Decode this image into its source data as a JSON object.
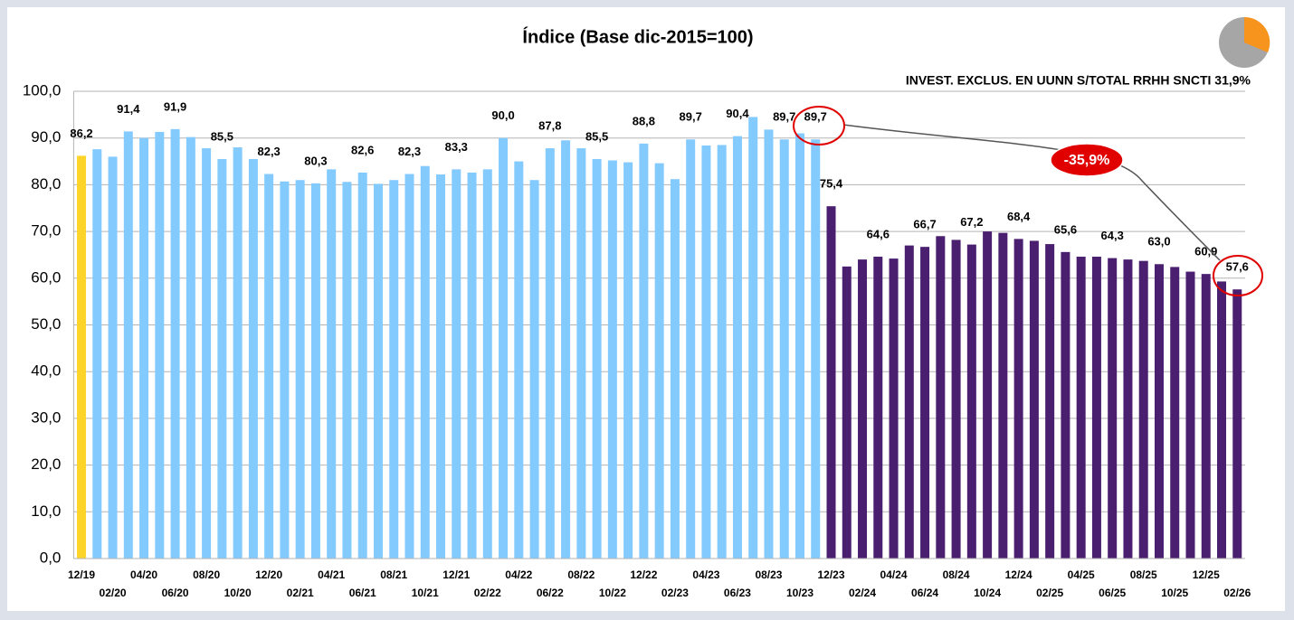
{
  "chart_data": {
    "type": "bar",
    "title": "Índice (Base dic-2015=100)",
    "subtitle": "INVEST. EXCLUS. EN UUNN S/TOTAL RRHH SNCTI  31,9%",
    "annotation": "-35,9%",
    "categories": [
      "12/19",
      null,
      "02/20",
      null,
      "04/20",
      null,
      "06/20",
      null,
      "08/20",
      null,
      "10/20",
      null,
      "12/20",
      null,
      "02/21",
      null,
      "04/21",
      null,
      "06/21",
      null,
      "08/21",
      null,
      "10/21",
      null,
      "12/21",
      null,
      "02/22",
      null,
      "04/22",
      null,
      "06/22",
      null,
      "08/22",
      null,
      "10/22",
      null,
      "12/22",
      null,
      "02/23",
      null,
      "04/23",
      null,
      "06/23",
      null,
      "08/23",
      null,
      "10/23",
      null,
      "12/23",
      null,
      "02/24",
      null,
      "04/24",
      null,
      "06/24",
      null,
      "08/24",
      null,
      "10/24",
      null,
      "12/24",
      null,
      "02/25",
      null,
      "04/25",
      null,
      "06/25",
      null,
      "08/25",
      null,
      "10/25",
      null,
      "12/25",
      null,
      "02/26"
    ],
    "values": [
      86.2,
      87.6,
      86.0,
      91.4,
      90.0,
      91.3,
      91.9,
      90.2,
      87.8,
      85.5,
      88.0,
      85.5,
      82.3,
      80.7,
      81.0,
      80.3,
      83.3,
      80.6,
      82.6,
      80.2,
      81.0,
      82.3,
      84.0,
      82.2,
      83.3,
      82.6,
      83.3,
      90.0,
      85.0,
      81.0,
      87.8,
      89.5,
      87.8,
      85.5,
      85.2,
      84.8,
      88.8,
      84.6,
      81.2,
      89.7,
      88.4,
      88.5,
      90.4,
      94.5,
      91.8,
      89.7,
      91.0,
      89.7,
      75.4,
      62.5,
      64.0,
      64.6,
      64.2,
      67.0,
      66.7,
      69.0,
      68.2,
      67.2,
      70.0,
      69.7,
      68.4,
      68.0,
      67.3,
      65.6,
      64.6,
      64.6,
      64.3,
      64.0,
      63.7,
      63.0,
      62.4,
      61.4,
      60.9,
      59.3,
      57.6
    ],
    "value_labels": [
      "86,2",
      null,
      null,
      "91,4",
      null,
      null,
      "91,9",
      null,
      null,
      "85,5",
      null,
      null,
      "82,3",
      null,
      null,
      "80,3",
      null,
      null,
      "82,6",
      null,
      null,
      "82,3",
      null,
      null,
      "83,3",
      null,
      null,
      "90,0",
      null,
      null,
      "87,8",
      null,
      null,
      "85,5",
      null,
      null,
      "88,8",
      null,
      null,
      "89,7",
      null,
      null,
      "90,4",
      null,
      null,
      "89,7",
      null,
      "89,7",
      "75,4",
      null,
      null,
      "64,6",
      null,
      null,
      "66,7",
      null,
      null,
      "67,2",
      null,
      null,
      "68,4",
      null,
      null,
      "65,6",
      null,
      null,
      "64,3",
      null,
      null,
      "63,0",
      null,
      null,
      "60,9",
      null,
      "57,6"
    ],
    "colors": [
      "#ffd42a",
      "#83caff",
      "#83caff",
      "#83caff",
      "#83caff",
      "#83caff",
      "#83caff",
      "#83caff",
      "#83caff",
      "#83caff",
      "#83caff",
      "#83caff",
      "#83caff",
      "#83caff",
      "#83caff",
      "#83caff",
      "#83caff",
      "#83caff",
      "#83caff",
      "#83caff",
      "#83caff",
      "#83caff",
      "#83caff",
      "#83caff",
      "#83caff",
      "#83caff",
      "#83caff",
      "#83caff",
      "#83caff",
      "#83caff",
      "#83caff",
      "#83caff",
      "#83caff",
      "#83caff",
      "#83caff",
      "#83caff",
      "#83caff",
      "#83caff",
      "#83caff",
      "#83caff",
      "#83caff",
      "#83caff",
      "#83caff",
      "#83caff",
      "#83caff",
      "#83caff",
      "#83caff",
      "#83caff",
      "#4b1f6f",
      "#4b1f6f",
      "#4b1f6f",
      "#4b1f6f",
      "#4b1f6f",
      "#4b1f6f",
      "#4b1f6f",
      "#4b1f6f",
      "#4b1f6f",
      "#4b1f6f",
      "#4b1f6f",
      "#4b1f6f",
      "#4b1f6f",
      "#4b1f6f",
      "#4b1f6f",
      "#4b1f6f",
      "#4b1f6f",
      "#4b1f6f",
      "#4b1f6f",
      "#4b1f6f",
      "#4b1f6f",
      "#4b1f6f",
      "#4b1f6f",
      "#4b1f6f",
      "#4b1f6f",
      "#4b1f6f",
      "#4b1f6f"
    ],
    "ylim": [
      0,
      100
    ],
    "yticks": [
      {
        "value": 0,
        "label": "0,0"
      },
      {
        "value": 10,
        "label": "10,0"
      },
      {
        "value": 20,
        "label": "20,0"
      },
      {
        "value": 30,
        "label": "30,0"
      },
      {
        "value": 40,
        "label": "40,0"
      },
      {
        "value": 50,
        "label": "50,0"
      },
      {
        "value": 60,
        "label": "60,0"
      },
      {
        "value": 70,
        "label": "70,0"
      },
      {
        "value": 80,
        "label": "80,0"
      },
      {
        "value": 90,
        "label": "90,0"
      },
      {
        "value": 100,
        "label": "100,0"
      }
    ],
    "grid": true
  }
}
